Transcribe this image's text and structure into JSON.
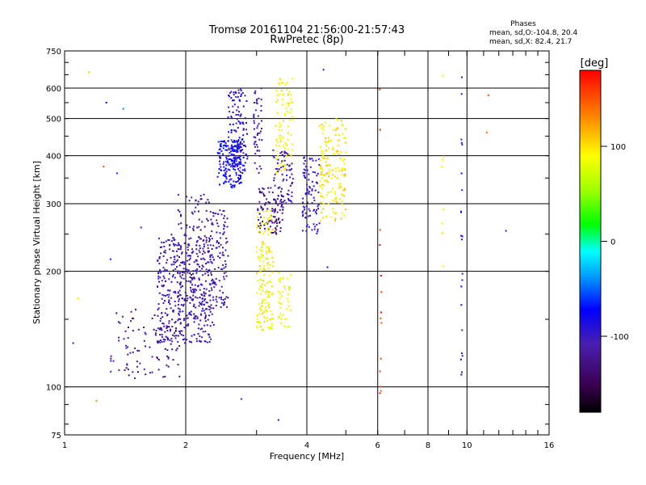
{
  "chart_data": {
    "type": "scatter",
    "title": "Tromsø 20161104 21:56:00-21:57:43",
    "subtitle": "RwPretec (8p)",
    "xlabel": "Frequency [MHz]",
    "ylabel": "Stationary phase Virtual Height [km]",
    "x_scale": "log",
    "y_scale": "log",
    "xlim": [
      1,
      16
    ],
    "ylim": [
      75,
      750
    ],
    "x_ticks": [
      1,
      2,
      4,
      6,
      8,
      10,
      16
    ],
    "y_ticks": [
      75,
      100,
      200,
      300,
      400,
      500,
      600,
      750
    ],
    "grid": true,
    "phases_box": {
      "heading": "Phases",
      "line1": "mean, sd,O:-104.8, 20.4",
      "line2": "mean, sd,X:  82.4, 21.7"
    },
    "colorbar": {
      "label": "[deg]",
      "ticks": [
        "100",
        "0",
        "-100"
      ],
      "tick_values": [
        100,
        0,
        -100
      ],
      "range": [
        -180,
        180
      ]
    },
    "clusters": [
      {
        "f": [
          1.3,
          1.95
        ],
        "h": [
          105,
          160
        ],
        "phase": [
          -140,
          -105
        ],
        "n": 110
      },
      {
        "f": [
          1.7,
          2.35
        ],
        "h": [
          130,
          250
        ],
        "phase": [
          -125,
          -90
        ],
        "n": 420
      },
      {
        "f": [
          1.9,
          2.3
        ],
        "h": [
          150,
          320
        ],
        "phase": [
          -140,
          -100
        ],
        "n": 120
      },
      {
        "f": [
          2.3,
          2.55
        ],
        "h": [
          160,
          290
        ],
        "phase": [
          -125,
          -95
        ],
        "n": 110
      },
      {
        "f": [
          2.4,
          2.75
        ],
        "h": [
          330,
          440
        ],
        "phase": [
          -100,
          -60
        ],
        "n": 170
      },
      {
        "f": [
          2.55,
          2.85
        ],
        "h": [
          360,
          600
        ],
        "phase": [
          -110,
          -70
        ],
        "n": 130
      },
      {
        "f": [
          2.95,
          3.1
        ],
        "h": [
          360,
          600
        ],
        "phase": [
          -130,
          -105
        ],
        "n": 50
      },
      {
        "f": [
          3.0,
          3.5
        ],
        "h": [
          250,
          330
        ],
        "phase": [
          -145,
          -110
        ],
        "n": 100
      },
      {
        "f": [
          3.0,
          3.3
        ],
        "h": [
          140,
          290
        ],
        "phase": [
          70,
          110
        ],
        "n": 160
      },
      {
        "f": [
          3.4,
          3.65
        ],
        "h": [
          140,
          200
        ],
        "phase": [
          70,
          100
        ],
        "n": 40
      },
      {
        "f": [
          3.35,
          3.7
        ],
        "h": [
          360,
          640
        ],
        "phase": [
          75,
          110
        ],
        "n": 90
      },
      {
        "f": [
          3.3,
          3.7
        ],
        "h": [
          300,
          420
        ],
        "phase": [
          -130,
          -90
        ],
        "n": 70
      },
      {
        "f": [
          3.9,
          4.3
        ],
        "h": [
          250,
          400
        ],
        "phase": [
          -115,
          -85
        ],
        "n": 90
      },
      {
        "f": [
          4.3,
          5.0
        ],
        "h": [
          270,
          500
        ],
        "phase": [
          75,
          115
        ],
        "n": 170
      }
    ],
    "vertical_streaks": [
      {
        "f": 6.1,
        "h": [
          85,
          620
        ],
        "phase": 160,
        "n": 14
      },
      {
        "f": 8.7,
        "h": [
          200,
          660
        ],
        "phase": 95,
        "n": 8
      },
      {
        "f": 9.7,
        "h": [
          100,
          660
        ],
        "phase": -95,
        "n": 22
      }
    ],
    "sparse_points": [
      {
        "f": 1.05,
        "h": 130,
        "phase": -95
      },
      {
        "f": 1.08,
        "h": 170,
        "phase": 100
      },
      {
        "f": 1.15,
        "h": 660,
        "phase": 110
      },
      {
        "f": 1.25,
        "h": 375,
        "phase": 150
      },
      {
        "f": 1.27,
        "h": 550,
        "phase": -80
      },
      {
        "f": 1.4,
        "h": 530,
        "phase": -40
      },
      {
        "f": 1.35,
        "h": 360,
        "phase": -60
      },
      {
        "f": 1.55,
        "h": 260,
        "phase": -110
      },
      {
        "f": 1.2,
        "h": 92,
        "phase": 130
      },
      {
        "f": 1.3,
        "h": 215,
        "phase": -100
      },
      {
        "f": 2.75,
        "h": 93,
        "phase": -110
      },
      {
        "f": 3.4,
        "h": 82,
        "phase": -130
      },
      {
        "f": 4.4,
        "h": 670,
        "phase": -95
      },
      {
        "f": 4.5,
        "h": 205,
        "phase": -90
      },
      {
        "f": 11.3,
        "h": 575,
        "phase": 150
      },
      {
        "f": 11.2,
        "h": 460,
        "phase": 140
      },
      {
        "f": 12.5,
        "h": 255,
        "phase": -95
      }
    ]
  }
}
